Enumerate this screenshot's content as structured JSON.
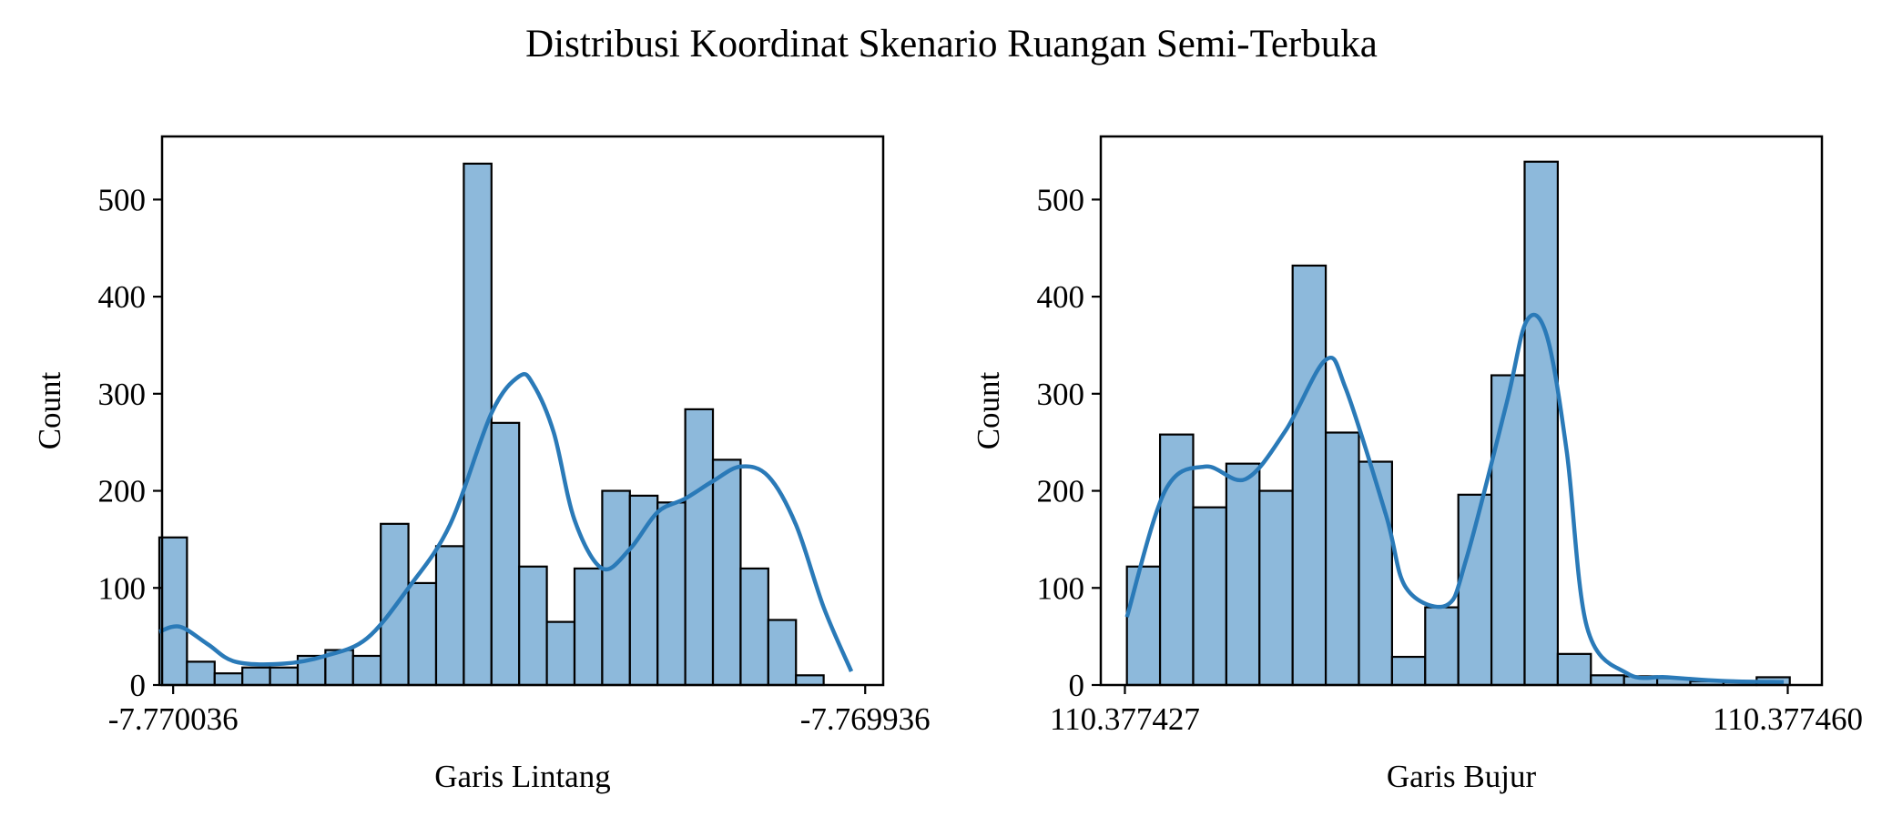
{
  "figure": {
    "title": "Distribusi Koordinat Skenario Ruangan Semi-Terbuka"
  },
  "chart_data": [
    {
      "type": "bar",
      "subtype": "histogram",
      "xlabel": "Garis Lintang",
      "ylabel": "Count",
      "xlim": [
        -7.7700376,
        -7.7699334
      ],
      "ylim": [
        0,
        565
      ],
      "xtick_values": [
        -7.770036,
        -7.769936
      ],
      "xtick_labels": [
        "-7.770036",
        "-7.769936"
      ],
      "yticks": [
        0,
        100,
        200,
        300,
        400,
        500
      ],
      "bin_start": -7.770038,
      "bin_width": 4e-06,
      "counts": [
        152,
        24,
        12,
        18,
        18,
        30,
        36,
        30,
        166,
        105,
        143,
        537,
        270,
        122,
        65,
        120,
        200,
        195,
        188,
        284,
        232,
        120,
        67,
        10
      ],
      "kde_x": [
        -7.770038,
        -7.770035,
        -7.770031,
        -7.770027,
        -7.77002,
        -7.770014,
        -7.770008,
        -7.770002,
        -7.769996,
        -7.76999,
        -7.769986,
        -7.769984,
        -7.769981,
        -7.769978,
        -7.769974,
        -7.76997,
        -7.769966,
        -7.769962,
        -7.769958,
        -7.769954,
        -7.76995,
        -7.769946,
        -7.769942,
        -7.769938
      ],
      "kde_y": [
        55,
        60,
        42,
        24,
        22,
        30,
        48,
        100,
        165,
        280,
        318,
        310,
        260,
        170,
        120,
        140,
        178,
        192,
        210,
        225,
        215,
        165,
        80,
        14
      ],
      "kde_color": "#2a7ab8",
      "bar_color": "#8db9db",
      "grid": false,
      "legend": "none"
    },
    {
      "type": "bar",
      "subtype": "histogram",
      "xlabel": "Garis Bujur",
      "ylabel": "Count",
      "xlim": [
        110.3774258,
        110.3774617
      ],
      "ylim": [
        0,
        565
      ],
      "xtick_values": [
        110.377427,
        110.37746
      ],
      "xtick_labels": [
        "110.377427",
        "110.377460"
      ],
      "yticks": [
        0,
        100,
        200,
        300,
        400,
        500
      ],
      "bin_start": 110.3774271,
      "bin_width": 1.65e-06,
      "counts": [
        122,
        258,
        183,
        228,
        200,
        432,
        260,
        230,
        29,
        80,
        196,
        319,
        539,
        32,
        10,
        9,
        7,
        4,
        3,
        8
      ],
      "kde_x": [
        110.3774271,
        110.377429,
        110.377431,
        110.377433,
        110.377435,
        110.377437,
        110.377438,
        110.37744,
        110.377441,
        110.377443,
        110.377444,
        110.377446,
        110.377447,
        110.377448,
        110.377449,
        110.37745,
        110.377452,
        110.377454,
        110.377457,
        110.3774598
      ],
      "kde_y": [
        70,
        200,
        225,
        212,
        262,
        335,
        305,
        175,
        100,
        82,
        130,
        290,
        375,
        360,
        240,
        60,
        12,
        8,
        4,
        3
      ],
      "kde_color": "#2a7ab8",
      "bar_color": "#8db9db",
      "grid": false,
      "legend": "none"
    }
  ]
}
